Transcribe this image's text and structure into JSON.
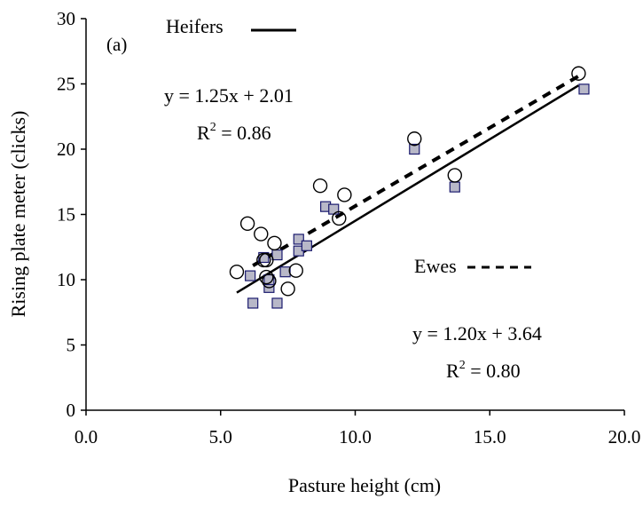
{
  "chart_data": {
    "type": "scatter",
    "panel_label": "(a)",
    "xlabel": "Pasture height (cm)",
    "ylabel": "Rising plate meter (clicks)",
    "xlim": [
      0,
      20
    ],
    "ylim": [
      0,
      30
    ],
    "xticks": [
      "0.0",
      "5.0",
      "10.0",
      "15.0",
      "20.0"
    ],
    "yticks": [
      "0",
      "5",
      "10",
      "15",
      "20",
      "25",
      "30"
    ],
    "grid": false,
    "legend": "inline",
    "series": [
      {
        "name": "Heifers",
        "marker": "open-circle",
        "line_style": "solid",
        "equation": "y = 1.25x + 2.01",
        "r2_prefix": "R",
        "r2_sup": "2",
        "r2_suffix": " = 0.86",
        "slope": 1.25,
        "intercept": 2.01,
        "fit_x": [
          5.6,
          18.3
        ],
        "points": [
          [
            5.6,
            10.6
          ],
          [
            6.0,
            14.3
          ],
          [
            6.5,
            13.5
          ],
          [
            6.6,
            11.5
          ],
          [
            6.7,
            11.5
          ],
          [
            6.7,
            10.2
          ],
          [
            6.8,
            9.9
          ],
          [
            7.0,
            12.8
          ],
          [
            7.5,
            9.3
          ],
          [
            7.8,
            10.7
          ],
          [
            8.7,
            17.2
          ],
          [
            9.4,
            14.7
          ],
          [
            9.6,
            16.5
          ],
          [
            12.2,
            20.8
          ],
          [
            13.7,
            18.0
          ],
          [
            18.3,
            25.8
          ]
        ]
      },
      {
        "name": "Ewes",
        "marker": "filled-square",
        "line_style": "dashed",
        "equation": "y = 1.20x + 3.64",
        "r2_prefix": "R",
        "r2_sup": "2",
        "r2_suffix": " = 0.80",
        "slope": 1.2,
        "intercept": 3.64,
        "fit_x": [
          6.2,
          18.5
        ],
        "points": [
          [
            6.1,
            10.3
          ],
          [
            6.2,
            8.2
          ],
          [
            6.6,
            11.7
          ],
          [
            6.8,
            9.4
          ],
          [
            6.8,
            10.0
          ],
          [
            7.1,
            11.9
          ],
          [
            7.1,
            8.2
          ],
          [
            7.4,
            10.6
          ],
          [
            7.9,
            13.1
          ],
          [
            7.9,
            12.2
          ],
          [
            8.2,
            12.6
          ],
          [
            8.9,
            15.6
          ],
          [
            9.2,
            15.4
          ],
          [
            12.2,
            20.0
          ],
          [
            13.7,
            17.1
          ],
          [
            18.5,
            24.6
          ]
        ]
      }
    ]
  },
  "colors": {
    "axis": "#000000",
    "square_fill": "#b8b8c8",
    "square_stroke": "#1a1a6e",
    "circle_stroke": "#000000"
  }
}
